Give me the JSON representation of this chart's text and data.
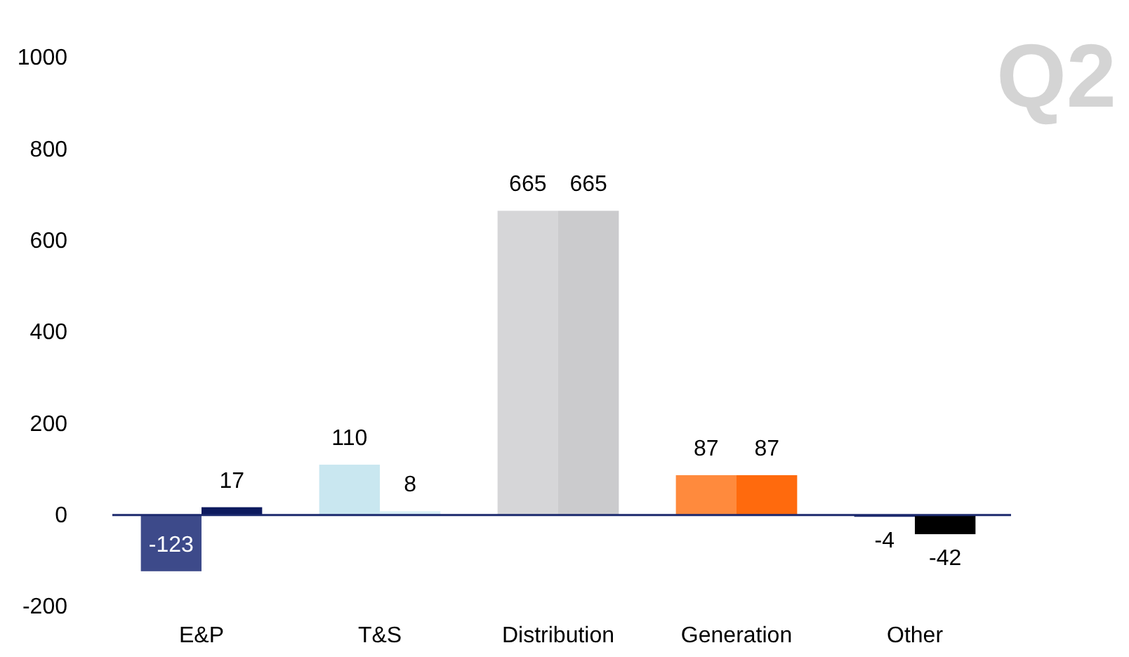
{
  "chart_data": {
    "type": "bar",
    "title": "Q2",
    "categories": [
      "E&P",
      "T&S",
      "Distribution",
      "Generation",
      "Other"
    ],
    "series": [
      {
        "colors": [
          "#3d4a8a",
          "#c9e7f0",
          "#d6d6d8",
          "#ff8a3d",
          "#1c2a6e"
        ],
        "values": [
          -123,
          110,
          665,
          87,
          -4
        ]
      },
      {
        "colors": [
          "#0d1a5e",
          "#d7eef5",
          "#cbcbcd",
          "#ff6a0d",
          "#000000"
        ],
        "values": [
          17,
          8,
          665,
          87,
          -42
        ]
      }
    ],
    "ylim": [
      -200,
      1000
    ],
    "yticks": [
      -200,
      0,
      200,
      400,
      600,
      800,
      1000
    ],
    "grid": false,
    "ref_lines": [
      {
        "axis": "y",
        "value": 0,
        "color": "#1c2a6e"
      }
    ],
    "data_labels": true
  }
}
